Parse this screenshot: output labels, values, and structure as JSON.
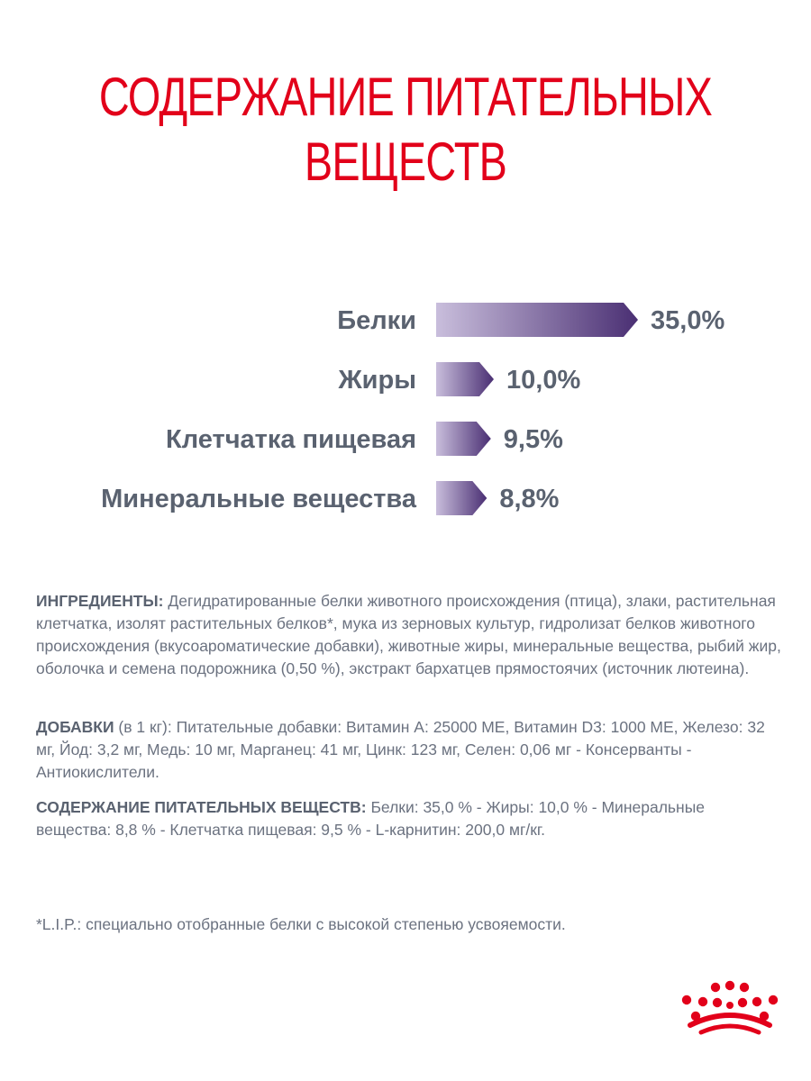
{
  "title_lines": [
    "СОДЕРЖАНИЕ ПИТАТЕЛЬНЫХ",
    "ВЕЩЕСТВ"
  ],
  "colors": {
    "title": "#e2001a",
    "label": "#5a6270",
    "bar_light": "#c9bedc",
    "bar_dark": "#4a2f73",
    "logo": "#e2001a"
  },
  "chart_data": {
    "type": "bar",
    "orientation": "horizontal",
    "categories": [
      "Белки",
      "Жиры",
      "Клетчатка пищевая",
      "Минеральные вещества"
    ],
    "values": [
      35.0,
      10.0,
      9.5,
      8.8
    ],
    "value_labels": [
      "35,0%",
      "10,0%",
      "9,5%",
      "8,8%"
    ],
    "unit": "%"
  },
  "text": {
    "ingredients_lead": "ИНГРЕДИЕНТЫ:",
    "ingredients_body": " Дегидратированные белки животного происхождения (птица), злаки, растительная клетчатка, изолят растительных белков*, мука из зерновых культур, гидролизат белков животного происхождения (вкусоароматические добавки), животные жиры, минеральные вещества, рыбий жир, оболочка и семена подорожника (0,50 %), экстракт бархатцев прямостоячих (источник лютеина).",
    "additives_lead": "ДОБАВКИ",
    "additives_body": " (в 1 кг): Питательные добавки: Витамин A: 25000 МЕ, Витамин D3: 1000 МЕ, Железо: 32 мг, Йод: 3,2 мг, Медь: 10 мг, Марганец: 41 мг, Цинк: 123 мг, Селен: 0,06 мг - Консерванты - Антиокислители.",
    "nutrients_lead": "СОДЕРЖАНИЕ ПИТАТЕЛЬНЫХ ВЕЩЕСТВ:",
    "nutrients_body": " Белки: 35,0 % - Жиры: 10,0 % - Минеральные вещества: 8,8 % - Клетчатка пищевая: 9,5 % - L-карнитин: 200,0 мг/кг.",
    "footnote": "*L.I.P.: специально отобранные белки с высокой степенью усвояемости."
  },
  "logo": {
    "icon": "crown-icon"
  }
}
